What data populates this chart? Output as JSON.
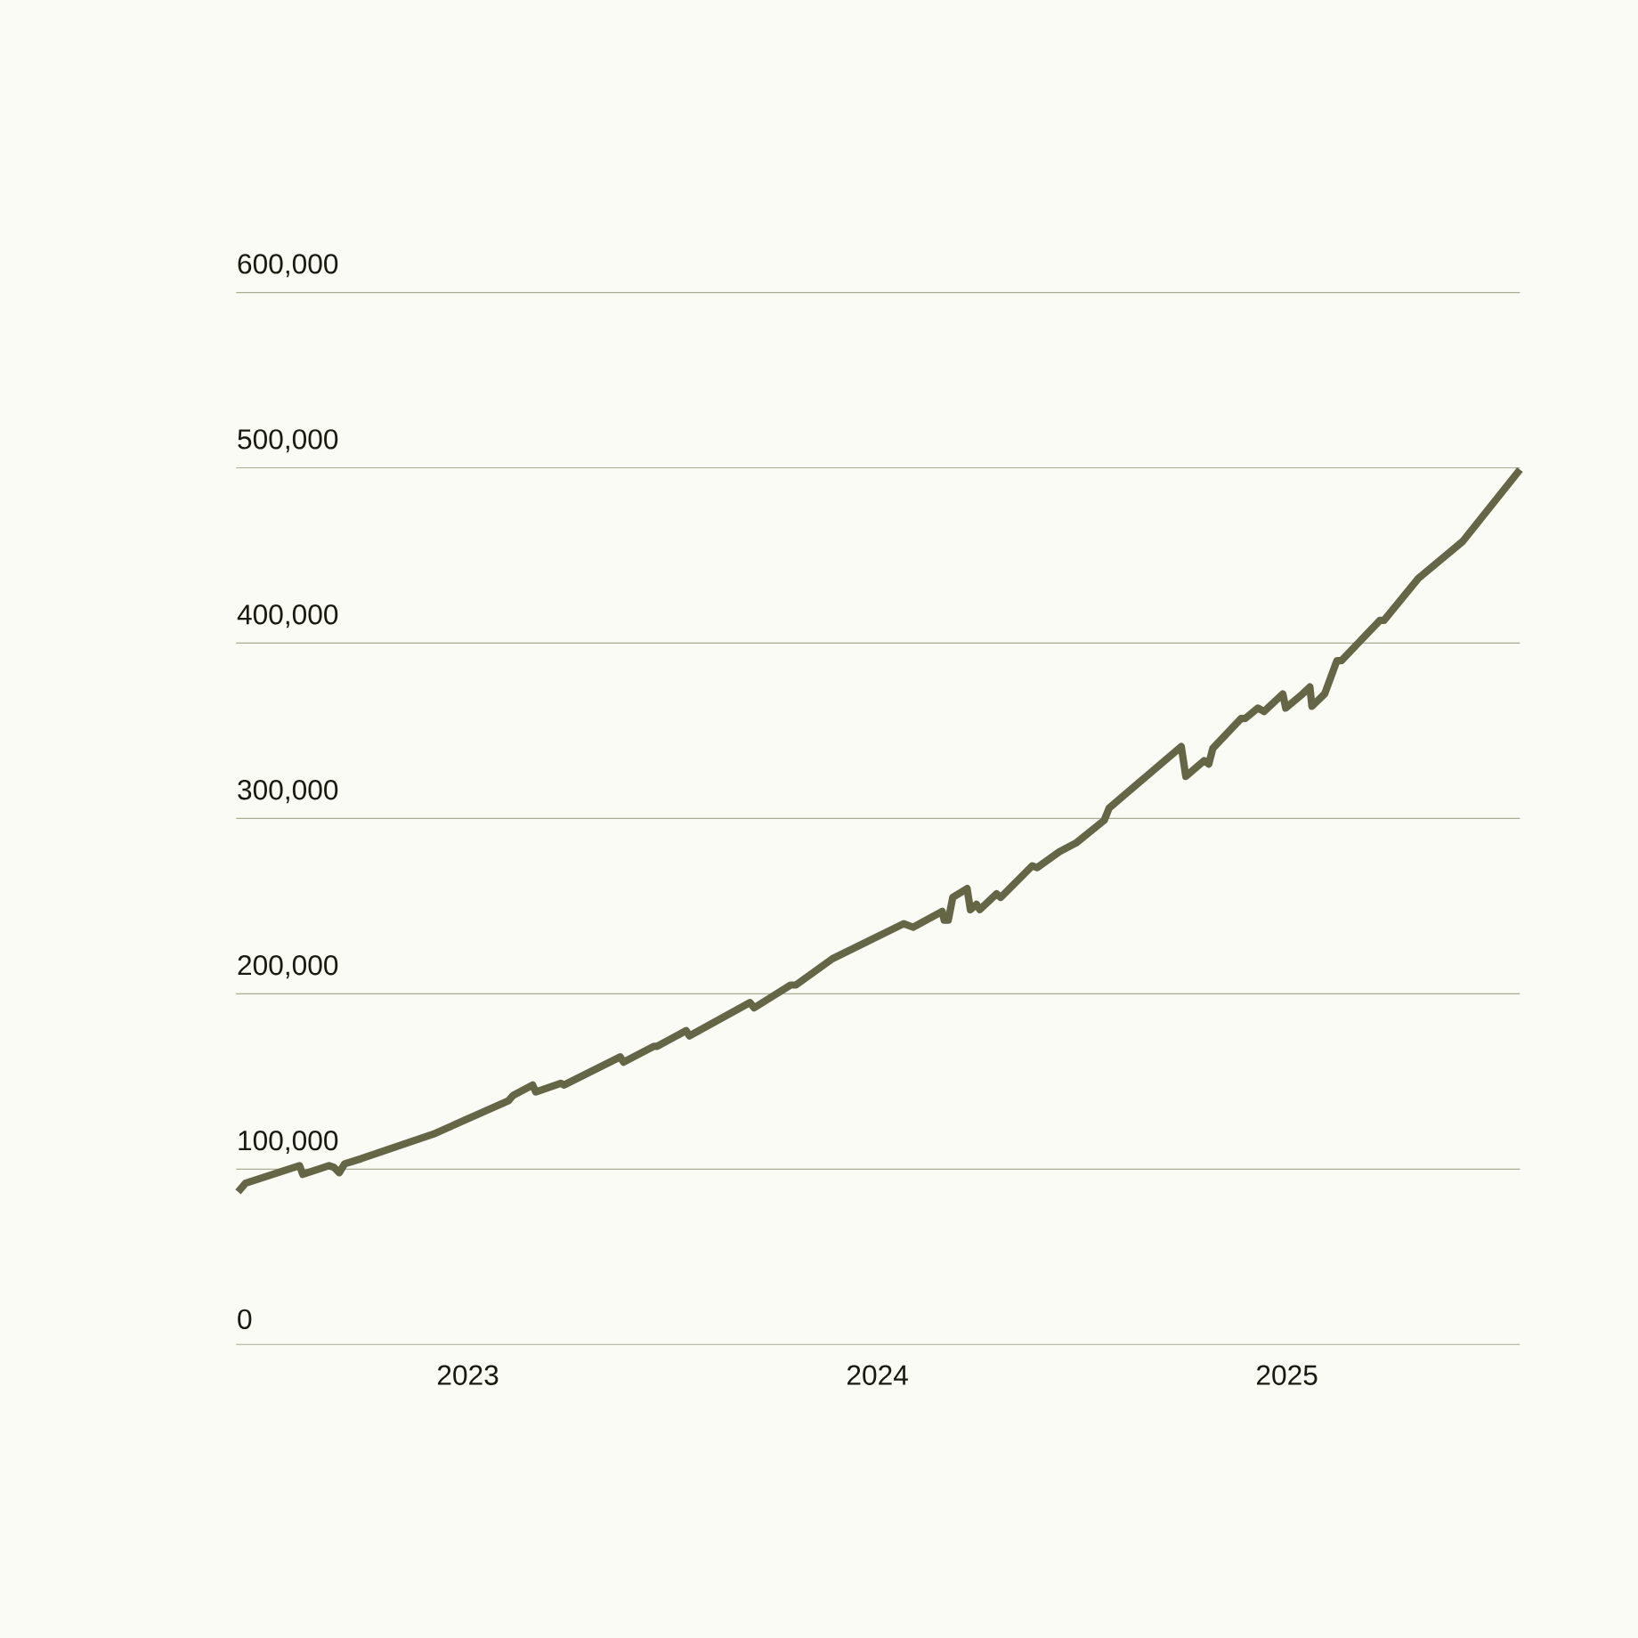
{
  "chart_data": {
    "type": "line",
    "x": [
      2022.439,
      2022.457,
      2022.589,
      2022.597,
      2022.661,
      2022.673,
      2022.686,
      2022.699,
      2022.74,
      2022.916,
      2023.099,
      2023.11,
      2023.158,
      2023.166,
      2023.227,
      2023.235,
      2023.372,
      2023.38,
      2023.454,
      2023.462,
      2023.533,
      2023.541,
      2023.689,
      2023.699,
      2023.788,
      2023.801,
      2023.89,
      2024.064,
      2024.087,
      2024.158,
      2024.163,
      2024.173,
      2024.184,
      2024.219,
      2024.227,
      2024.242,
      2024.25,
      2024.291,
      2024.301,
      2024.378,
      2024.39,
      2024.444,
      2024.485,
      2024.554,
      2024.566,
      2024.742,
      2024.753,
      2024.798,
      2024.809,
      2024.819,
      2024.888,
      2024.898,
      2024.929,
      2024.944,
      2024.99,
      2024.997,
      2025.038,
      2025.056,
      2025.061,
      2025.092,
      2025.122,
      2025.133,
      2025.227,
      2025.237,
      2025.321,
      2025.429,
      2025.569
    ],
    "series": [
      {
        "color": "#646646",
        "values": [
          87000,
          92000,
          102000,
          97000,
          102000,
          101000,
          98000,
          103000,
          106000,
          120000,
          139000,
          142000,
          148000,
          144000,
          149000,
          148000,
          164000,
          161000,
          170000,
          170000,
          179000,
          176000,
          195000,
          192000,
          205000,
          205000,
          220000,
          240000,
          238000,
          247000,
          242000,
          242000,
          255000,
          260000,
          248000,
          251000,
          248000,
          257000,
          255000,
          273000,
          272000,
          281000,
          286000,
          299000,
          306000,
          341000,
          324000,
          333000,
          331000,
          340000,
          357000,
          357000,
          363000,
          361000,
          371000,
          363000,
          371000,
          375000,
          364000,
          371000,
          390000,
          390000,
          413000,
          413000,
          437000,
          458000,
          499000
        ]
      }
    ],
    "xlim": [
      2022.434,
      2025.569
    ],
    "ylim": [
      0,
      600000
    ],
    "xticks": [
      2023,
      2024,
      2025
    ],
    "yticks": [
      {
        "value": 0,
        "label": "0"
      },
      {
        "value": 100000,
        "label": "100,000"
      },
      {
        "value": 200000,
        "label": "200,000"
      },
      {
        "value": 300000,
        "label": "300,000"
      },
      {
        "value": 400000,
        "label": "400,000"
      },
      {
        "value": 500000,
        "label": "500,000"
      },
      {
        "value": 600000,
        "label": "600,000"
      }
    ],
    "grid": "y",
    "line_style": "solid"
  }
}
